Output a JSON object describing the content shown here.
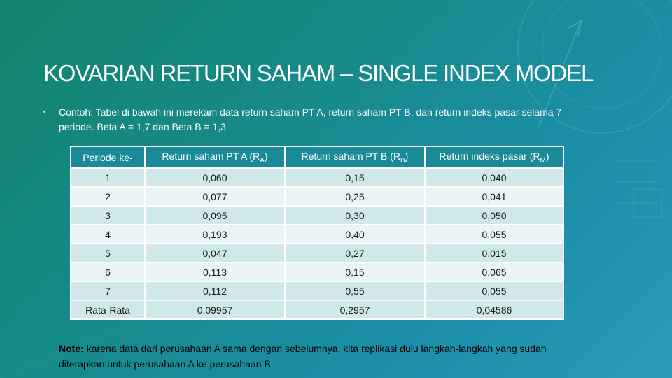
{
  "slide": {
    "title": "KOVARIAN RETURN SAHAM – SINGLE INDEX MODEL",
    "intro": "Contoh: Tabel di bawah ini merekam data return saham PT A, return saham PT B, dan return indeks pasar selama 7 periode. Beta A = 1,7 dan Beta B = 1,3",
    "bullet": "•"
  },
  "table": {
    "headers": {
      "period": "Periode ke-",
      "ra_main": "Return saham PT A (R",
      "ra_sub": "A",
      "rb_main": "Return saham PT B (R",
      "rb_sub": "B",
      "rm_main": "Return indeks pasar (R",
      "rm_sub": "M",
      "close_paren": ")"
    },
    "rows": [
      [
        "1",
        "0,060",
        "0,15",
        "0,040"
      ],
      [
        "2",
        "0,077",
        "0,25",
        "0,041"
      ],
      [
        "3",
        "0,095",
        "0,30",
        "0,050"
      ],
      [
        "4",
        "0,193",
        "0,40",
        "0,055"
      ],
      [
        "5",
        "0,047",
        "0,27",
        "0,015"
      ],
      [
        "6",
        "0,113",
        "0,15",
        "0,065"
      ],
      [
        "7",
        "0,112",
        "0,55",
        "0,055"
      ]
    ],
    "average": [
      "Rata-Rata",
      "0,09957",
      "0,2957",
      "0,04586"
    ]
  },
  "note": {
    "label": "Note:",
    "text": " karena data dari perusahaan A sama dengan sebelumnya, kita replikasi dulu langkah-langkah yang sudah diterapkan untuk perusahaan A ke perusahaan B"
  },
  "colors": {
    "background_start": "#12846a",
    "background_end": "#2a9ab8",
    "header_fill": "#1a8a99",
    "row_fill_dark": "#d1e8ea",
    "row_fill_light": "#e9f4f5"
  }
}
